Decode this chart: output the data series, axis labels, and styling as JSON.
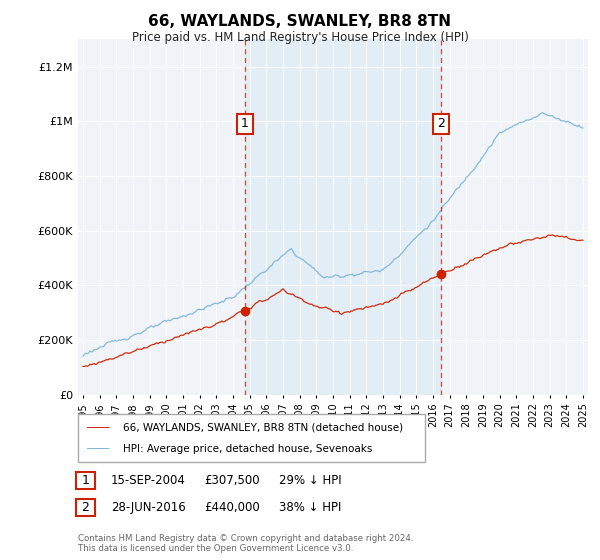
{
  "title": "66, WAYLANDS, SWANLEY, BR8 8TN",
  "subtitle": "Price paid vs. HM Land Registry's House Price Index (HPI)",
  "hpi_label": "HPI: Average price, detached house, Sevenoaks",
  "property_label": "66, WAYLANDS, SWANLEY, BR8 8TN (detached house)",
  "sale1_date": "15-SEP-2004",
  "sale1_price": 307500,
  "sale1_hpi_pct": "29% ↓ HPI",
  "sale2_date": "28-JUN-2016",
  "sale2_price": 440000,
  "sale2_hpi_pct": "38% ↓ HPI",
  "sale1_year": 2004.71,
  "sale2_year": 2016.49,
  "ytick_vals": [
    0,
    200000,
    400000,
    600000,
    800000,
    1000000,
    1200000
  ],
  "ylim": [
    0,
    1300000
  ],
  "xlim_start": 1995,
  "xlim_end": 2025,
  "hpi_color": "#7ab3d9",
  "hpi_fill_color": "#d6e8f5",
  "property_color": "#cc2200",
  "background_color": "#f0f4f8",
  "grid_color": "#ffffff",
  "footnote": "Contains HM Land Registry data © Crown copyright and database right 2024.\nThis data is licensed under the Open Government Licence v3.0."
}
